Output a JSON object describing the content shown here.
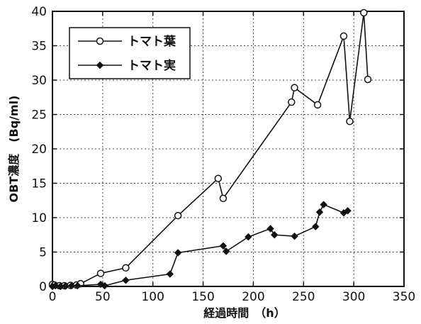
{
  "chart_data": {
    "type": "line",
    "title": "",
    "xlabel": "経過時間　（h）",
    "ylabel": "OBT濃度　(Bq/ml)",
    "xlim": [
      0,
      350
    ],
    "ylim": [
      0,
      40
    ],
    "xticks": [
      0,
      50,
      100,
      150,
      200,
      250,
      300,
      350
    ],
    "yticks": [
      0,
      5,
      10,
      15,
      20,
      25,
      30,
      35,
      40
    ],
    "grid": true,
    "legend_position": "top-left",
    "series": [
      {
        "name": "トマト葉",
        "marker": "circle",
        "color": "#111111",
        "x": [
          0,
          2,
          7,
          12,
          18,
          24,
          28,
          48,
          73,
          125,
          165,
          170,
          238,
          241,
          264,
          290,
          296,
          310,
          314
        ],
        "y": [
          0.3,
          0.2,
          0.1,
          0.1,
          0.15,
          0.2,
          0.4,
          1.9,
          2.7,
          10.3,
          15.7,
          12.8,
          26.8,
          28.9,
          26.4,
          36.4,
          24.0,
          39.8,
          30.1
        ]
      },
      {
        "name": "トマト実",
        "marker": "diamond",
        "color": "#111111",
        "x": [
          0,
          3,
          8,
          13,
          19,
          25,
          48,
          52,
          73,
          117,
          125,
          170,
          173,
          195,
          217,
          221,
          241,
          262,
          266,
          270,
          290,
          294
        ],
        "y": [
          0,
          0.1,
          0,
          0.05,
          0.1,
          0.1,
          0.3,
          0.1,
          0.9,
          1.8,
          4.9,
          5.9,
          5.1,
          7.2,
          8.4,
          7.5,
          7.3,
          8.7,
          10.8,
          11.9,
          10.7,
          11.0
        ]
      }
    ]
  }
}
